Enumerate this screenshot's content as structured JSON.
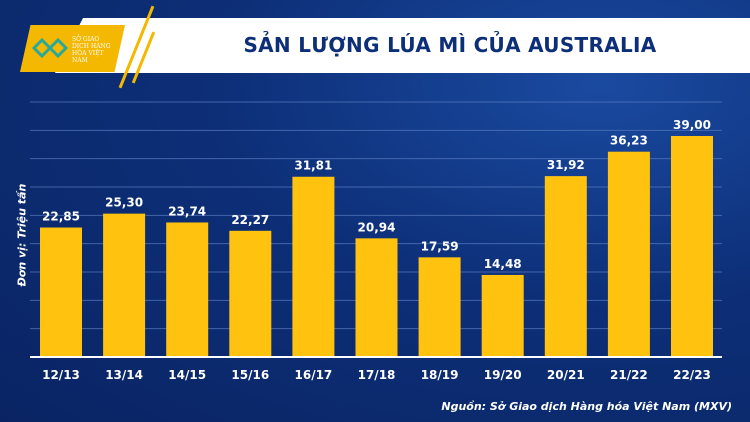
{
  "logo": {
    "text": "SỞ GIAO DỊCH HÀNG HÓA VIỆT NAM"
  },
  "chart_data": {
    "type": "bar",
    "title": "SẢN LƯỢNG LÚA MÌ CỦA AUSTRALIA",
    "ylabel": "Đơn vị: Triệu tấn",
    "xlabel": "",
    "categories": [
      "12/13",
      "13/14",
      "14/15",
      "15/16",
      "16/17",
      "17/18",
      "18/19",
      "19/20",
      "20/21",
      "21/22",
      "22/23"
    ],
    "values": [
      22.85,
      25.3,
      23.74,
      22.27,
      31.81,
      20.94,
      17.59,
      14.48,
      31.92,
      36.23,
      39.0
    ],
    "data_labels": [
      "22,85",
      "25,30",
      "23,74",
      "22,27",
      "31,81",
      "20,94",
      "17,59",
      "14,48",
      "31,92",
      "36,23",
      "39,00"
    ],
    "ylim": [
      0,
      45
    ],
    "grid": true,
    "bar_color": "#FFC20E"
  },
  "source": "Nguồn: Sở Giao dịch Hàng hóa Việt Nam (MXV)"
}
